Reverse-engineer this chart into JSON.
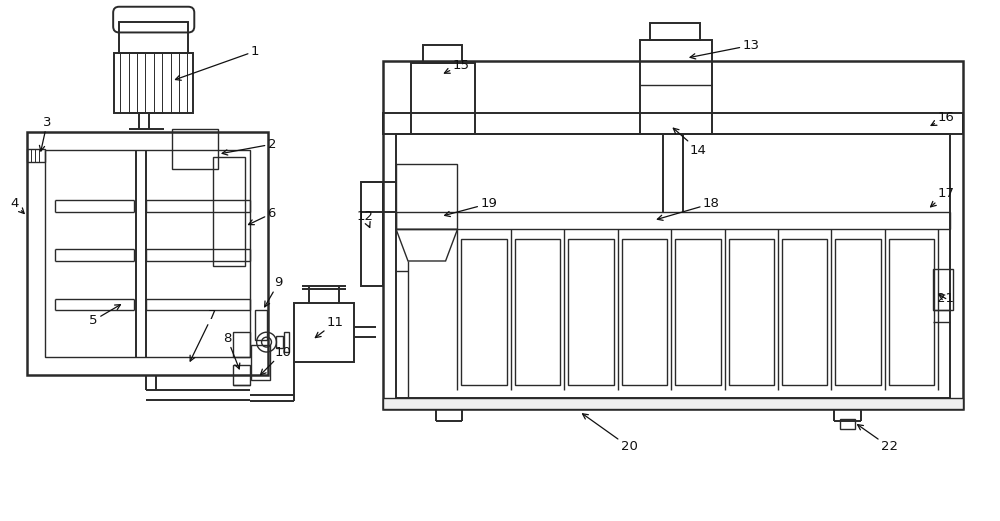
{
  "bg_color": "#ffffff",
  "line_color": "#2a2a2a",
  "fig_width": 10.0,
  "fig_height": 5.21
}
